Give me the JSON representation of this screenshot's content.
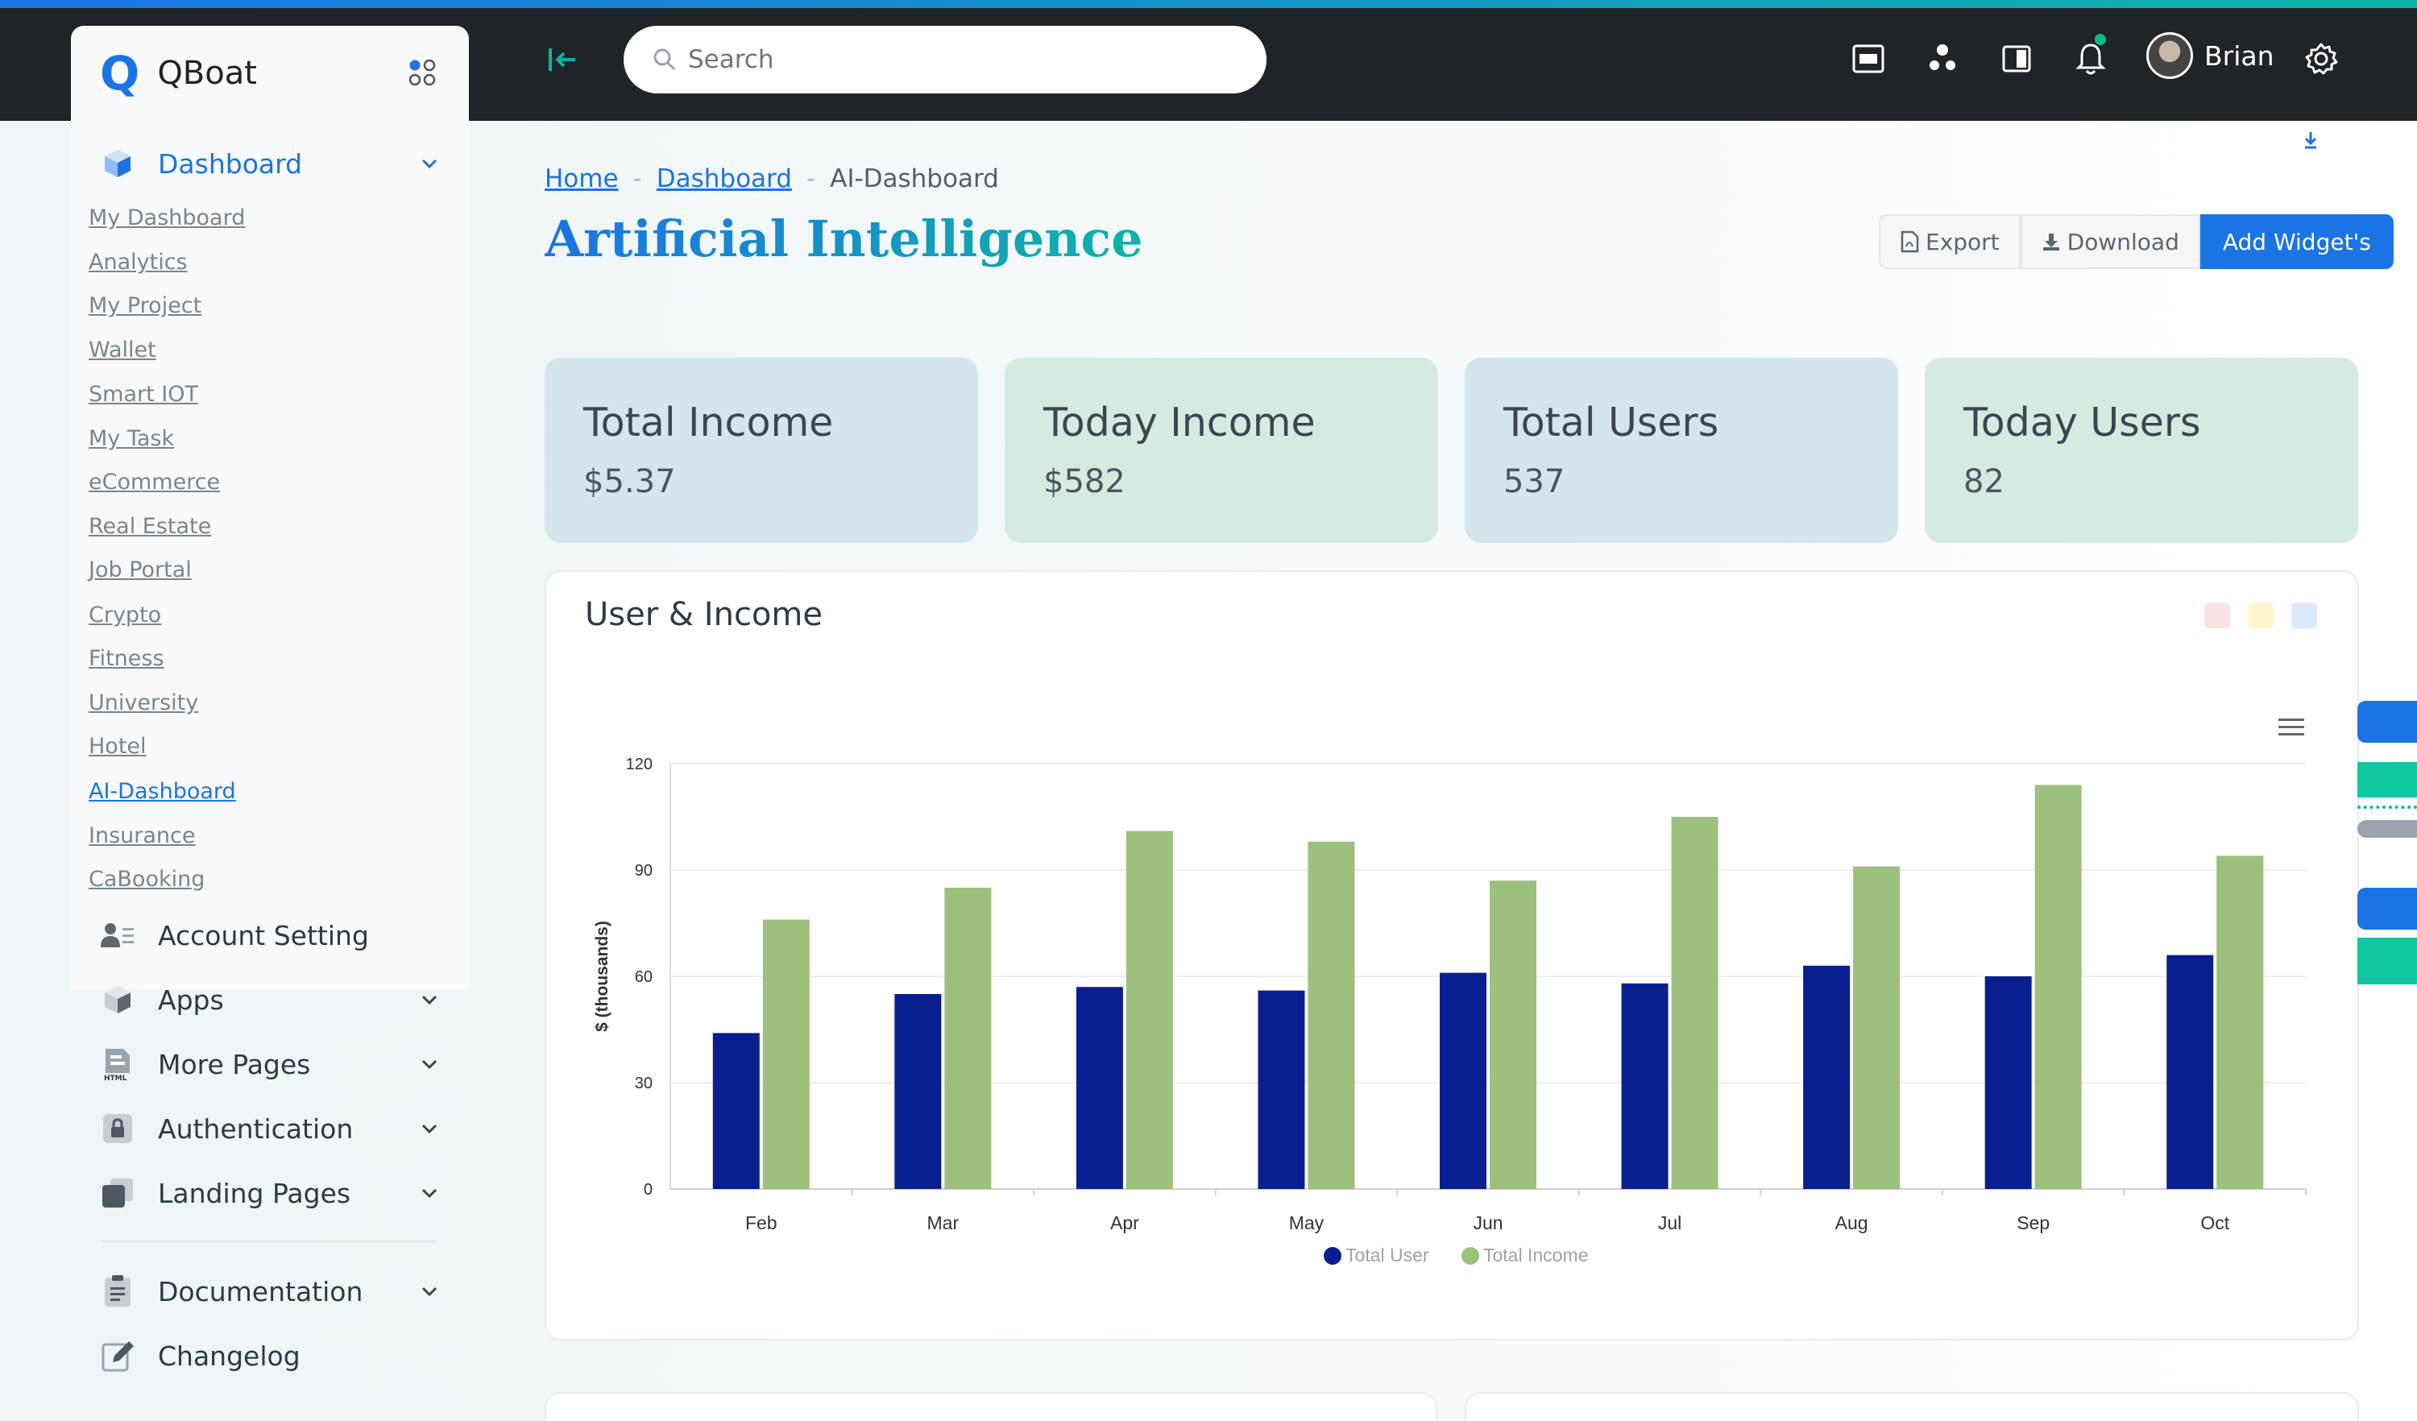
{
  "brand": {
    "logo_letter": "Q",
    "name": "QBoat"
  },
  "search": {
    "placeholder": "Search"
  },
  "user": {
    "name": "Brian"
  },
  "colors": {
    "accent": "#1b74e4",
    "teal": "#10b3a8",
    "topbar": "#1f2429",
    "series_user": "#0a1f8f",
    "series_income": "#9cc17c"
  },
  "sidebar": {
    "dashboard": {
      "label": "Dashboard",
      "icon": "cube-icon"
    },
    "sub_items": [
      {
        "label": "My Dashboard"
      },
      {
        "label": "Analytics"
      },
      {
        "label": "My Project"
      },
      {
        "label": "Wallet"
      },
      {
        "label": "Smart IOT"
      },
      {
        "label": "My Task"
      },
      {
        "label": "eCommerce"
      },
      {
        "label": "Real Estate"
      },
      {
        "label": "Job Portal"
      },
      {
        "label": "Crypto"
      },
      {
        "label": "Fitness"
      },
      {
        "label": "University"
      },
      {
        "label": "Hotel"
      },
      {
        "label": "AI-Dashboard",
        "active": true
      },
      {
        "label": "Insurance"
      },
      {
        "label": "CaBooking"
      }
    ],
    "items": [
      {
        "label": "Account Setting",
        "icon": "user-settings-icon"
      },
      {
        "label": "Apps",
        "icon": "box-icon"
      },
      {
        "label": "More Pages",
        "icon": "html-file-icon"
      },
      {
        "label": "Authentication",
        "icon": "lock-icon"
      },
      {
        "label": "Landing Pages",
        "icon": "pages-icon"
      },
      {
        "label": "Documentation",
        "icon": "document-icon"
      },
      {
        "label": "Changelog",
        "icon": "pencil-icon"
      }
    ]
  },
  "breadcrumb": {
    "home": "Home",
    "dashboard": "Dashboard",
    "current": "AI-Dashboard",
    "separator": "-"
  },
  "page": {
    "title": "Artificial Intelligence"
  },
  "actions": {
    "export": "Export",
    "download": "Download",
    "add_widgets": "Add Widget's"
  },
  "stats": [
    {
      "title": "Total Income",
      "value": "$5.37"
    },
    {
      "title": "Today Income",
      "value": "$582"
    },
    {
      "title": "Total Users",
      "value": "537"
    },
    {
      "title": "Today Users",
      "value": "82"
    }
  ],
  "card": {
    "title": "User & Income"
  },
  "chart_data": {
    "type": "bar",
    "categories": [
      "Feb",
      "Mar",
      "Apr",
      "May",
      "Jun",
      "Jul",
      "Aug",
      "Sep",
      "Oct"
    ],
    "series": [
      {
        "name": "Total User",
        "values": [
          44,
          55,
          57,
          56,
          61,
          58,
          63,
          60,
          66
        ],
        "color": "#0a1f8f"
      },
      {
        "name": "Total Income",
        "values": [
          76,
          85,
          101,
          98,
          87,
          105,
          91,
          114,
          94
        ],
        "color": "#9cc17c"
      }
    ],
    "ylabel": "$ (thousands)",
    "yticks": [
      0,
      30,
      60,
      90,
      120
    ],
    "ylim": [
      0,
      120
    ],
    "grid": true,
    "legend": "bottom-center"
  }
}
